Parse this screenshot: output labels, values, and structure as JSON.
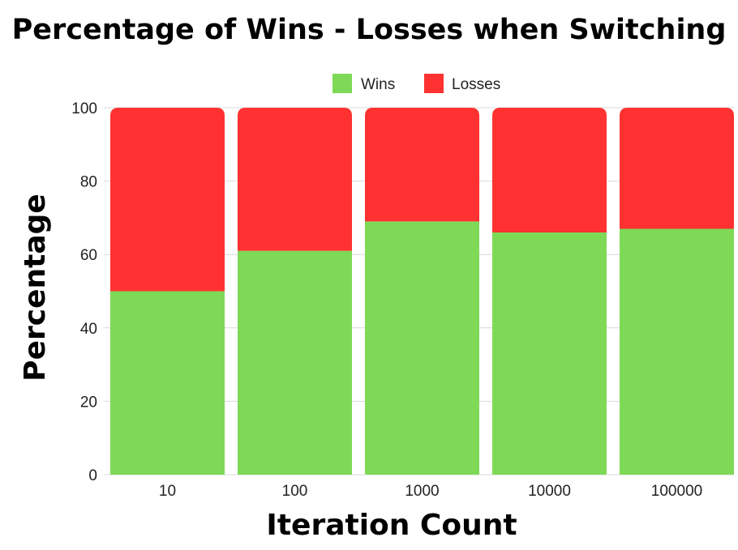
{
  "chart_data": {
    "type": "bar",
    "stacked": true,
    "title": "Percentage of Wins - Losses when Switching",
    "xlabel": "Iteration Count",
    "ylabel": "Percentage",
    "categories": [
      "10",
      "100",
      "1000",
      "10000",
      "100000"
    ],
    "series": [
      {
        "name": "Wins",
        "color": "#7ed957",
        "values": [
          50,
          61,
          69,
          66,
          67
        ]
      },
      {
        "name": "Losses",
        "color": "#ff3131",
        "values": [
          50,
          39,
          31,
          34,
          33
        ]
      }
    ],
    "ylim": [
      0,
      100
    ],
    "yticks": [
      0,
      20,
      40,
      60,
      80,
      100
    ],
    "grid": true,
    "legend_position": "top-center"
  }
}
